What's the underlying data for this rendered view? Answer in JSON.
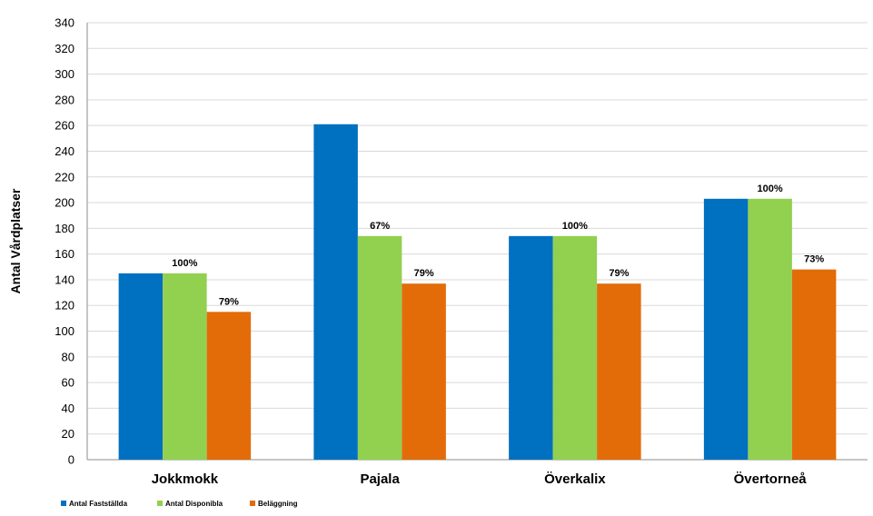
{
  "chart_data": {
    "type": "bar",
    "ylabel": "Antal Vårdplatser",
    "xlabel": "",
    "ylim": [
      0,
      340
    ],
    "yticks": [
      0,
      20,
      40,
      60,
      80,
      100,
      120,
      140,
      160,
      180,
      200,
      220,
      240,
      260,
      280,
      300,
      320,
      340
    ],
    "grid": true,
    "legend_position": "bottom-left",
    "categories": [
      "Jokkmokk",
      "Pajala",
      "Överkalix",
      "Övertorneå"
    ],
    "series": [
      {
        "name": "Antal Fastställda",
        "color": "#0070C0",
        "values": [
          145,
          261,
          174,
          203
        ],
        "labels": [
          "",
          "",
          "",
          ""
        ]
      },
      {
        "name": "Antal Disponibla",
        "color": "#92D050",
        "values": [
          145,
          174,
          174,
          203
        ],
        "labels": [
          "100%",
          "67%",
          "100%",
          "100%"
        ]
      },
      {
        "name": "Beläggning",
        "color": "#E36C09",
        "values": [
          115,
          137,
          137,
          148
        ],
        "labels": [
          "79%",
          "79%",
          "79%",
          "73%"
        ]
      }
    ]
  }
}
